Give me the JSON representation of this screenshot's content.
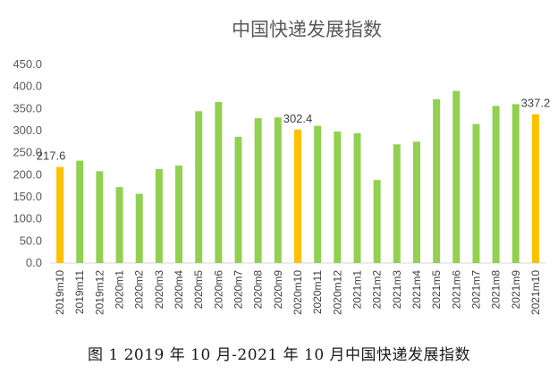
{
  "caption": "图 1  2019 年 10 月-2021 年 10 月中国快递发展指数",
  "colors": {
    "normal": "#92D050",
    "highlight": "#FFC000",
    "axis": "#D9D9D9",
    "text": "#595959"
  },
  "chart_data": {
    "type": "bar",
    "title": "中国快递发展指数",
    "xlabel": "",
    "ylabel": "",
    "ylim": [
      0,
      450
    ],
    "yticks": [
      "0.0",
      "50.0",
      "100.0",
      "150.0",
      "200.0",
      "250.0",
      "300.0",
      "350.0",
      "400.0",
      "450.0"
    ],
    "grid": false,
    "categories": [
      "2019m10",
      "2019m11",
      "2019m12",
      "2020m1",
      "2020m2",
      "2020m3",
      "2020m4",
      "2020m5",
      "2020m6",
      "2020m7",
      "2020m8",
      "2020m9",
      "2020m10",
      "2020m11",
      "2020m12",
      "2021m1",
      "2021m2",
      "2021m3",
      "2021m4",
      "2021m5",
      "2021m6",
      "2021m7",
      "2021m8",
      "2021m9",
      "2021m10"
    ],
    "values": [
      217.6,
      232,
      208,
      172,
      157,
      213,
      221,
      344,
      365,
      286,
      328,
      330,
      302.4,
      311,
      298,
      294,
      188,
      269,
      275,
      371,
      390,
      315,
      356,
      360,
      337.2
    ],
    "highlighted": [
      "2019m10",
      "2020m10",
      "2021m10"
    ],
    "data_labels": {
      "2019m10": "217.6",
      "2020m10": "302.4",
      "2021m10": "337.2"
    }
  }
}
